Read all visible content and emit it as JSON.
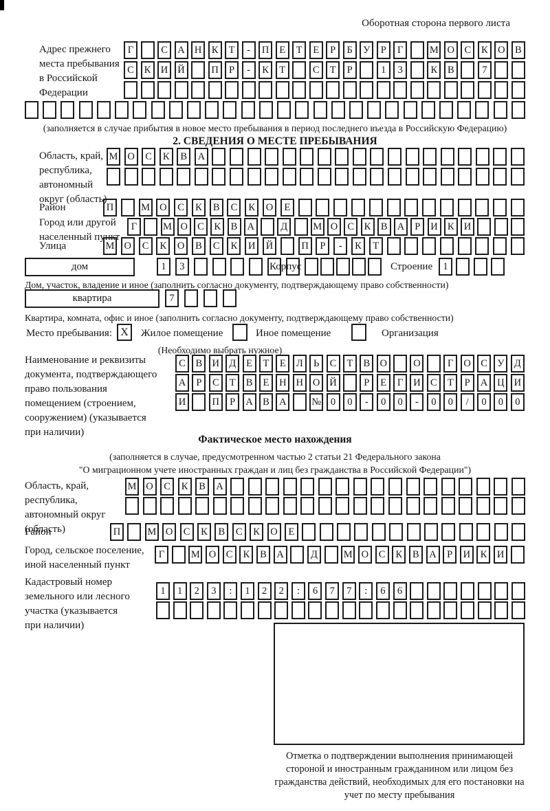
{
  "ink_color": "#1c1c1c",
  "header": {
    "back_side_note": "Оборотная сторона первого листа"
  },
  "prev_address": {
    "label": "Адрес прежнего\nместа пребывания\nв Российской\nФедерации",
    "row1": {
      "cells": 24,
      "text": "Г САНКТ-ПЕТЕРБУРГ МОСКОВ"
    },
    "row2": {
      "cells": 24,
      "text": "СКИЙ ПР-КТ СТР 13 КВ 7"
    },
    "row3": {
      "cells": 24,
      "text": ""
    },
    "row4": {
      "cells": 28,
      "text": ""
    },
    "caption": "(заполняется в случае прибытия в новое место пребывания в период последнего въезда в Российскую Федерацию)"
  },
  "section2": {
    "title": "2. СВЕДЕНИЯ О МЕСТЕ ПРЕБЫВАНИЯ",
    "oblast": {
      "label": "Область, край,\nреспублика,\nавтономный\nокруг (область)",
      "row1": {
        "cells": 24,
        "text": "МОСКВА"
      },
      "row2": {
        "cells": 24,
        "text": ""
      }
    },
    "raion": {
      "label": "Район",
      "row": {
        "cells": 24,
        "text": "П МОСКВСКОЕ"
      }
    },
    "gorod": {
      "label": "Город или другой\nнаселенный пункт",
      "row": {
        "cells": 24,
        "text": "Г МОСКВА Д МОСКВАРИКИ"
      }
    },
    "ulitsa": {
      "label": "Улица",
      "row": {
        "cells": 24,
        "text": "МОСКОВСКИЙ ПР-КТ"
      }
    },
    "dom": {
      "box_label": "дом",
      "number": {
        "cells": 8,
        "text": "13"
      },
      "korpus_label": "Корпус",
      "korpus": {
        "cells": 5,
        "text": ""
      },
      "stroenie_label": "Строение",
      "stroenie": {
        "cells": 4,
        "text": "1"
      },
      "caption": "Дом, участок, владение и иное (заполнить согласно документу, подтверждающему право собственности)"
    },
    "kvartira": {
      "box_label": "квартира",
      "number": {
        "cells": 4,
        "text": "7"
      },
      "caption": "Квартира, комната, офис и иное (заполнить согласно документу, подтверждающему право собственности)"
    },
    "mesto": {
      "label": "Место пребывания:",
      "option1": {
        "label": "Жилое помещение",
        "mark": "X"
      },
      "option2": {
        "label": "Иное помещение",
        "mark": ""
      },
      "option3": {
        "label": "Организация",
        "mark": ""
      },
      "caption": "(Необходимо выбрать нужное)"
    },
    "doc": {
      "label": "Наименование и реквизиты\nдокумента, подтверждающего\nправо пользования\nпомещением (строением,\nсооружением) (указывается\nпри наличии)",
      "row1": {
        "cells": 21,
        "text": "СВИДЕТЕЛЬСТВО О ГОСУД"
      },
      "row2": {
        "cells": 21,
        "text": "АРСТВЕННОЙ РЕГИСТРАЦИ"
      },
      "row3": {
        "cells": 21,
        "text": "И ПРАВА №00-00-00/000"
      }
    }
  },
  "fact": {
    "title": "Фактическое место нахождения",
    "caption1": "(заполняется в случае, предусмотренном частью 2 статьи 21 Федерального закона",
    "caption2": "\"О миграционном учете иностранных граждан и лиц без гражданства в Российской Федерации\")",
    "oblast": {
      "label": "Область, край,\nреспублика,\nавтономный округ\n(область)",
      "row1": {
        "cells": 23,
        "text": "МОСКВА"
      },
      "row2": {
        "cells": 23,
        "text": ""
      }
    },
    "raion": {
      "label": "Район",
      "row": {
        "cells": 24,
        "text": "П МОСКВСКОЕ"
      }
    },
    "gorod": {
      "label": "Город, сельское поселение,\nиной населенный пункт",
      "row": {
        "cells": 22,
        "text": "Г МОСКВА Д МОСКВАРИКИ"
      }
    },
    "kadastr": {
      "label": "Кадастровый номер\nземельного или лесного\nучастка (указывается\nпри наличии)",
      "row1": {
        "cells": 22,
        "text": "1123:122:677:66"
      },
      "row2": {
        "cells": 22,
        "text": ""
      }
    },
    "stamp_caption": "Отметка о подтверждении выполнения принимающей стороной и иностранным гражданином или лицом без гражданства действий, необходимых для его постановки на учет по месту пребывания"
  }
}
